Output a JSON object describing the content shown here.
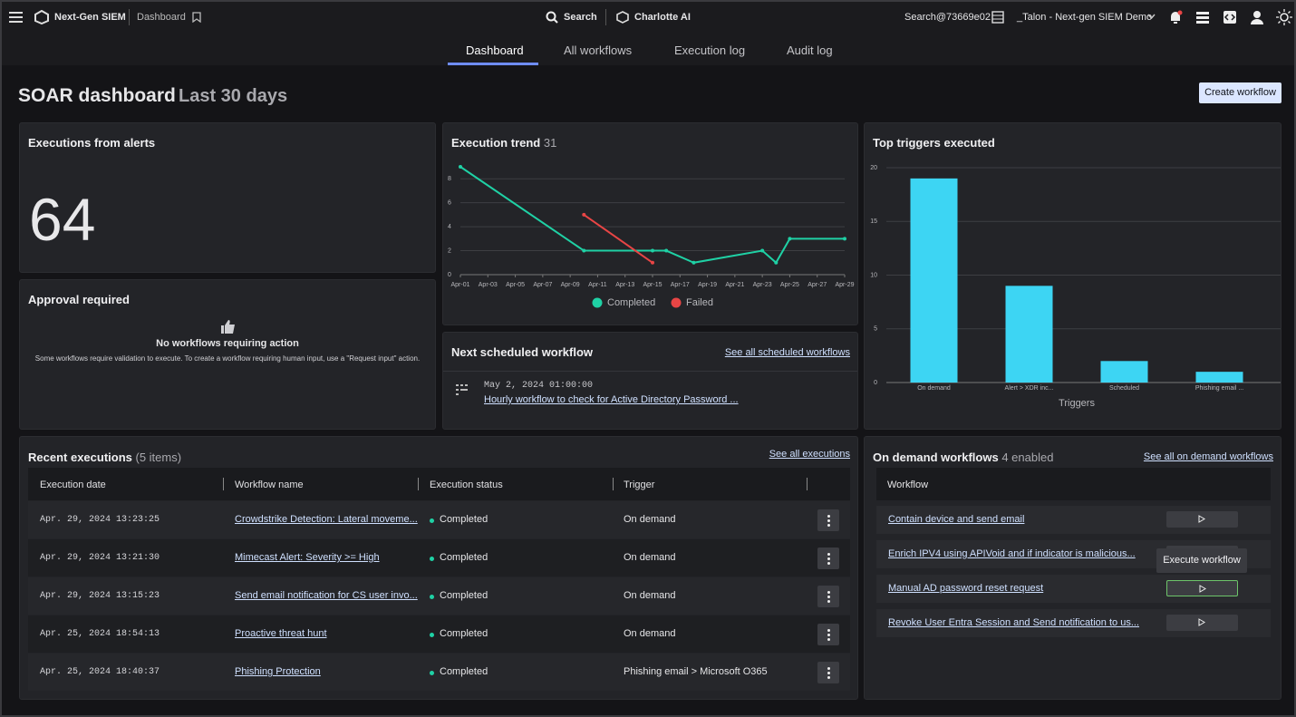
{
  "topbar": {
    "app": "Next-Gen SIEM",
    "page": "Dashboard",
    "search": "Search",
    "assistant": "Charlotte AI",
    "account": "Search@73669e02",
    "tenant": "_Talon - Next-gen SIEM Demo"
  },
  "tabs": [
    "Dashboard",
    "All workflows",
    "Execution log",
    "Audit log"
  ],
  "header": {
    "title": "SOAR dashboard",
    "period": "Last 30 days",
    "button": "Create workflow"
  },
  "alerts_card": {
    "title": "Executions from alerts",
    "value": 64
  },
  "approval_card": {
    "title": "Approval required",
    "heading": "No workflows requiring action",
    "text": "Some workflows require validation to execute. To create a workflow requiring human input, use a \"Request input\" action."
  },
  "chart_data": [
    {
      "type": "line",
      "title": "Execution trend",
      "total": 31,
      "xlim": [
        1,
        29
      ],
      "xticks": [
        {
          "value": 1,
          "label": "Apr-01"
        },
        {
          "value": 3,
          "label": "Apr-03"
        },
        {
          "value": 5,
          "label": "Apr-05"
        },
        {
          "value": 7,
          "label": "Apr-07"
        },
        {
          "value": 9,
          "label": "Apr-09"
        },
        {
          "value": 11,
          "label": "Apr-11"
        },
        {
          "value": 13,
          "label": "Apr-13"
        },
        {
          "value": 15,
          "label": "Apr-15"
        },
        {
          "value": 17,
          "label": "Apr-17"
        },
        {
          "value": 19,
          "label": "Apr-19"
        },
        {
          "value": 21,
          "label": "Apr-21"
        },
        {
          "value": 23,
          "label": "Apr-23"
        },
        {
          "value": 25,
          "label": "Apr-25"
        },
        {
          "value": 27,
          "label": "Apr-27"
        },
        {
          "value": 29,
          "label": "Apr-29"
        }
      ],
      "ylim": [
        0,
        9
      ],
      "yticks": [
        0,
        2,
        4,
        6,
        8
      ],
      "grid": true,
      "series": [
        {
          "name": "Completed",
          "color": "#1fd1a5",
          "x": [
            1,
            10,
            15,
            16,
            18,
            23,
            24,
            25,
            29
          ],
          "values": [
            9,
            2,
            2,
            2,
            1,
            2,
            1,
            3,
            3
          ]
        },
        {
          "name": "Failed",
          "color": "#e84545",
          "x": [
            10,
            15
          ],
          "values": [
            5,
            1
          ]
        }
      ]
    },
    {
      "type": "bar",
      "title": "Top triggers executed",
      "categories": [
        "On demand",
        "Alert > XDR inc...",
        "Scheduled",
        "Phishing email ..."
      ],
      "values": [
        19,
        9,
        2,
        1
      ],
      "color": "#3dd5f3",
      "ylim": [
        0,
        20
      ],
      "yticks": [
        0,
        5,
        10,
        15,
        20
      ],
      "xlabel": "Triggers",
      "grid": true
    }
  ],
  "scheduled_card": {
    "title": "Next scheduled workflow",
    "link": "See all scheduled workflows",
    "date": "May 2, 2024 01:00:00",
    "workflow": "Hourly workflow to check for Active Directory Password ..."
  },
  "recent_executions": {
    "title": "Recent executions",
    "count": "(5 items)",
    "link": "See all executions",
    "columns": [
      "Execution date",
      "Workflow name",
      "Execution status",
      "Trigger"
    ],
    "rows": [
      [
        "Apr. 29, 2024 13:23:25",
        "Crowdstrike Detection: Lateral moveme...",
        "Completed",
        "On demand"
      ],
      [
        "Apr. 29, 2024 13:21:30",
        "Mimecast Alert: Severity >= High",
        "Completed",
        "On demand"
      ],
      [
        "Apr. 29, 2024 13:15:23",
        "Send email notification for CS user invo...",
        "Completed",
        "On demand"
      ],
      [
        "Apr. 25, 2024 18:54:13",
        "Proactive threat hunt",
        "Completed",
        "On demand"
      ],
      [
        "Apr. 25, 2024 18:40:37",
        "Phishing Protection",
        "Completed",
        "Phishing email > Microsoft O365"
      ]
    ]
  },
  "on_demand": {
    "title": "On demand workflows",
    "count": "4 enabled",
    "link": "See all on demand workflows",
    "column": "Workflow",
    "rows": [
      "Contain device and send email",
      "Enrich IPV4 using APIVoid and if indicator is malicious...",
      "Manual AD password reset request",
      "Revoke User Entra Session and Send notification to us..."
    ],
    "tooltip": "Execute workflow"
  }
}
